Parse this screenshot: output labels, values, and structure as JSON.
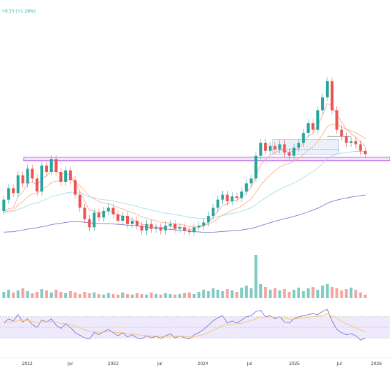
{
  "header": {
    "change_text": "+6.35 (+1.28%)"
  },
  "colors": {
    "up": "#26a69a",
    "down": "#ef5350",
    "ema_fast": "#f4a6a6",
    "ema_mid": "#f6b48a",
    "ema_long": "#9fe0e6",
    "ema_200": "#7e74d6",
    "rsi_line": "#7e74d6",
    "rsi_ma": "#f5c26b",
    "support_band": "#a142f4",
    "range_box": "#4a76c4"
  },
  "chart_data": [
    {
      "type": "candlestick",
      "title": "",
      "x_ticks": [
        "2022",
        "Jul",
        "2023",
        "Jul",
        "2024",
        "Jul",
        "2025",
        "Jul",
        "2026"
      ],
      "series": [
        {
          "name": "",
          "type": "ohlc",
          "values": [
            {
              "t": 0,
              "o": 38,
              "c": 45
            },
            {
              "t": 1,
              "o": 45,
              "c": 52
            },
            {
              "t": 2,
              "o": 52,
              "c": 49
            },
            {
              "t": 3,
              "o": 49,
              "c": 60
            },
            {
              "t": 4,
              "o": 60,
              "c": 55
            },
            {
              "t": 5,
              "o": 55,
              "c": 64
            },
            {
              "t": 6,
              "o": 64,
              "c": 58
            },
            {
              "t": 7,
              "o": 58,
              "c": 50
            },
            {
              "t": 8,
              "o": 50,
              "c": 66
            },
            {
              "t": 9,
              "o": 66,
              "c": 62
            },
            {
              "t": 10,
              "o": 62,
              "c": 70
            },
            {
              "t": 11,
              "o": 70,
              "c": 62
            },
            {
              "t": 12,
              "o": 62,
              "c": 56
            },
            {
              "t": 13,
              "o": 56,
              "c": 63
            },
            {
              "t": 14,
              "o": 63,
              "c": 57
            },
            {
              "t": 15,
              "o": 57,
              "c": 48
            },
            {
              "t": 16,
              "o": 48,
              "c": 40
            },
            {
              "t": 17,
              "o": 40,
              "c": 33
            },
            {
              "t": 18,
              "o": 33,
              "c": 28
            },
            {
              "t": 19,
              "o": 28,
              "c": 37
            },
            {
              "t": 20,
              "o": 37,
              "c": 34
            },
            {
              "t": 21,
              "o": 34,
              "c": 38
            },
            {
              "t": 22,
              "o": 38,
              "c": 40
            },
            {
              "t": 23,
              "o": 40,
              "c": 36
            },
            {
              "t": 24,
              "o": 36,
              "c": 32
            },
            {
              "t": 25,
              "o": 32,
              "c": 35
            },
            {
              "t": 26,
              "o": 35,
              "c": 30
            },
            {
              "t": 27,
              "o": 30,
              "c": 32
            },
            {
              "t": 28,
              "o": 32,
              "c": 29
            },
            {
              "t": 29,
              "o": 29,
              "c": 26
            },
            {
              "t": 30,
              "o": 26,
              "c": 30
            },
            {
              "t": 31,
              "o": 30,
              "c": 27
            },
            {
              "t": 32,
              "o": 27,
              "c": 28
            },
            {
              "t": 33,
              "o": 28,
              "c": 26
            },
            {
              "t": 34,
              "o": 26,
              "c": 29
            },
            {
              "t": 35,
              "o": 29,
              "c": 30
            },
            {
              "t": 36,
              "o": 30,
              "c": 27
            },
            {
              "t": 37,
              "o": 27,
              "c": 28
            },
            {
              "t": 38,
              "o": 28,
              "c": 26
            },
            {
              "t": 39,
              "o": 26,
              "c": 25
            },
            {
              "t": 40,
              "o": 25,
              "c": 28
            },
            {
              "t": 41,
              "o": 28,
              "c": 29
            },
            {
              "t": 42,
              "o": 29,
              "c": 31
            },
            {
              "t": 43,
              "o": 31,
              "c": 35
            },
            {
              "t": 44,
              "o": 35,
              "c": 40
            },
            {
              "t": 45,
              "o": 40,
              "c": 45
            },
            {
              "t": 46,
              "o": 45,
              "c": 48
            },
            {
              "t": 47,
              "o": 48,
              "c": 44
            },
            {
              "t": 48,
              "o": 44,
              "c": 47
            },
            {
              "t": 49,
              "o": 47,
              "c": 46
            },
            {
              "t": 50,
              "o": 46,
              "c": 50
            },
            {
              "t": 51,
              "o": 50,
              "c": 55
            },
            {
              "t": 52,
              "o": 55,
              "c": 58
            },
            {
              "t": 53,
              "o": 58,
              "c": 72
            },
            {
              "t": 54,
              "o": 72,
              "c": 80
            },
            {
              "t": 55,
              "o": 80,
              "c": 75
            },
            {
              "t": 56,
              "o": 75,
              "c": 78
            },
            {
              "t": 57,
              "o": 78,
              "c": 76
            },
            {
              "t": 58,
              "o": 76,
              "c": 79
            },
            {
              "t": 59,
              "o": 79,
              "c": 74
            },
            {
              "t": 60,
              "o": 74,
              "c": 72
            },
            {
              "t": 61,
              "o": 72,
              "c": 77
            },
            {
              "t": 62,
              "o": 77,
              "c": 80
            },
            {
              "t": 63,
              "o": 80,
              "c": 86
            },
            {
              "t": 64,
              "o": 86,
              "c": 92
            },
            {
              "t": 65,
              "o": 92,
              "c": 88
            },
            {
              "t": 66,
              "o": 88,
              "c": 100
            },
            {
              "t": 67,
              "o": 100,
              "c": 108
            },
            {
              "t": 68,
              "o": 108,
              "c": 118
            },
            {
              "t": 69,
              "o": 118,
              "c": 100
            },
            {
              "t": 70,
              "o": 100,
              "c": 88
            },
            {
              "t": 71,
              "o": 88,
              "c": 84
            },
            {
              "t": 72,
              "o": 84,
              "c": 80
            },
            {
              "t": 73,
              "o": 80,
              "c": 81
            },
            {
              "t": 74,
              "o": 81,
              "c": 79
            },
            {
              "t": 75,
              "o": 79,
              "c": 75
            },
            {
              "t": 76,
              "o": 75,
              "c": 73
            }
          ]
        }
      ],
      "overlays": [
        "EMA fast",
        "EMA mid",
        "EMA long",
        "EMA 200"
      ],
      "horizontal_band": "support zone",
      "rectangle": "consolidation range"
    },
    {
      "type": "bar",
      "title": "",
      "series": [
        {
          "name": "",
          "values": [
            9,
            12,
            8,
            11,
            14,
            10,
            7,
            9,
            13,
            11,
            8,
            12,
            9,
            7,
            10,
            8,
            6,
            9,
            7,
            8,
            6,
            5,
            7,
            6,
            5,
            8,
            6,
            5,
            7,
            6,
            5,
            8,
            6,
            5,
            7,
            6,
            5,
            6,
            7,
            8,
            6,
            9,
            12,
            10,
            14,
            12,
            10,
            13,
            11,
            9,
            15,
            18,
            14,
            62,
            20,
            16,
            12,
            14,
            11,
            13,
            9,
            12,
            15,
            10,
            14,
            16,
            12,
            18,
            20,
            16,
            14,
            11,
            13,
            15,
            12,
            8,
            5
          ]
        }
      ]
    },
    {
      "type": "line",
      "title": "",
      "ylim": [
        0,
        100
      ],
      "reference_lines": [
        70,
        50,
        30
      ],
      "series": [
        {
          "name": "",
          "values": [
            58,
            66,
            62,
            74,
            60,
            66,
            55,
            50,
            64,
            60,
            66,
            54,
            48,
            56,
            50,
            40,
            35,
            30,
            28,
            40,
            36,
            42,
            46,
            40,
            34,
            40,
            32,
            36,
            30,
            28,
            34,
            30,
            33,
            29,
            34,
            38,
            30,
            34,
            30,
            28,
            36,
            40,
            46,
            54,
            62,
            68,
            72,
            58,
            62,
            58,
            64,
            70,
            72,
            80,
            82,
            70,
            72,
            66,
            70,
            60,
            58,
            66,
            70,
            72,
            74,
            76,
            74,
            80,
            84,
            62,
            46,
            40,
            36,
            38,
            34,
            26,
            30
          ]
        }
      ]
    }
  ]
}
